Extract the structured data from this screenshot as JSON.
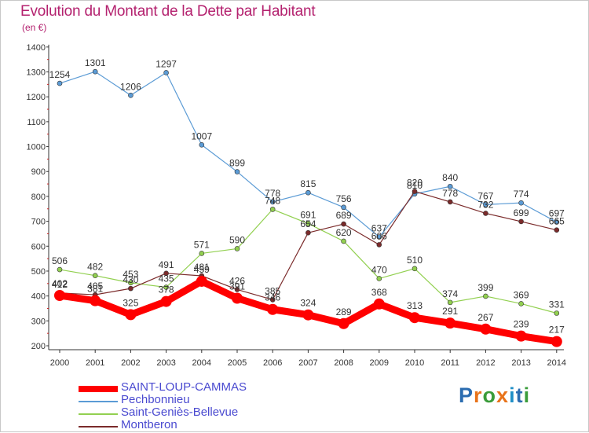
{
  "title": "Evolution du Montant de la Dette par Habitant",
  "unit_label": "(en €)",
  "chart_data": {
    "type": "line",
    "title": "Evolution du Montant de la Dette par Habitant",
    "ylabel": "(en €)",
    "xlabel": "",
    "ylim": [
      200,
      1400
    ],
    "yticks": [
      200,
      300,
      400,
      500,
      600,
      700,
      800,
      900,
      1000,
      1100,
      1200,
      1300,
      1400
    ],
    "grid": false,
    "legend_position": "bottom-left",
    "x": [
      "2000",
      "2001",
      "2002",
      "2003",
      "2004",
      "2005",
      "2006",
      "2007",
      "2008",
      "2009",
      "2010",
      "2011",
      "2012",
      "2013",
      "2014"
    ],
    "series": [
      {
        "name": "SAINT-LOUP-CAMMAS",
        "color": "#ff0000",
        "values": [
          402,
          381,
          325,
          378,
          459,
          391,
          346,
          324,
          289,
          368,
          313,
          291,
          267,
          239,
          217
        ]
      },
      {
        "name": "Pechbonnieu",
        "color": "#5b9bd5",
        "values": [
          1254,
          1301,
          1206,
          1297,
          1007,
          899,
          778,
          815,
          756,
          637,
          810,
          840,
          767,
          774,
          697
        ]
      },
      {
        "name": "Saint-Geniès-Bellevue",
        "color": "#92d050",
        "values": [
          506,
          482,
          453,
          435,
          571,
          590,
          748,
          691,
          620,
          470,
          510,
          374,
          399,
          369,
          331
        ]
      },
      {
        "name": "Montberon",
        "color": "#7b2b2b",
        "values": [
          412,
          405,
          430,
          491,
          481,
          426,
          385,
          654,
          689,
          606,
          820,
          778,
          732,
          699,
          665
        ]
      }
    ]
  },
  "legend": [
    {
      "label": "SAINT-LOUP-CAMMAS",
      "color": "#ff0000"
    },
    {
      "label": "Pechbonnieu",
      "color": "#5b9bd5"
    },
    {
      "label": "Saint-Geniès-Bellevue",
      "color": "#92d050"
    },
    {
      "label": "Montberon",
      "color": "#7b2b2b"
    }
  ],
  "logo": {
    "text": "Proxiti",
    "letter_colors": [
      "#2b6cb0",
      "#e8731a",
      "#3a9c3a",
      "#e8731a",
      "#1f8fc7",
      "#2b6cb0",
      "#3a9c3a"
    ]
  }
}
